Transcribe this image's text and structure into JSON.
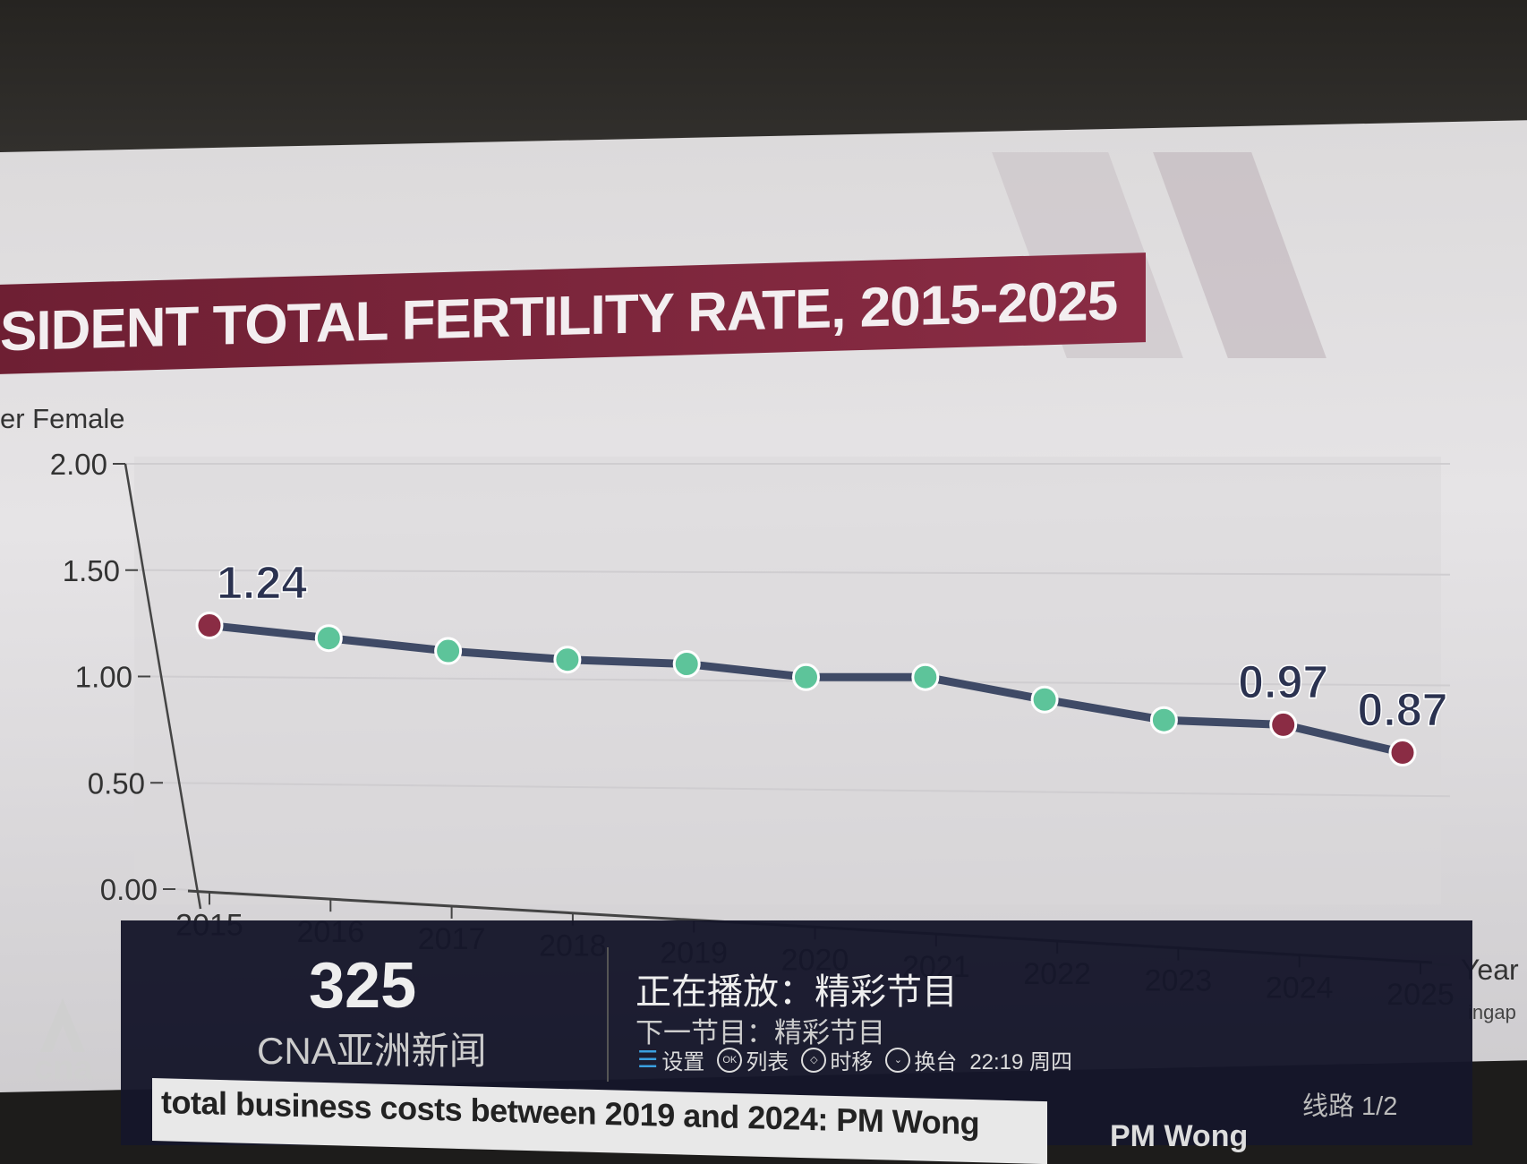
{
  "banner": {
    "title": "SIDENT TOTAL FERTILITY RATE, 2015-2025"
  },
  "chart_data": {
    "type": "line",
    "title": "SIDENT TOTAL FERTILITY RATE, 2015-2025",
    "ylabel": "er Female",
    "xlabel": "Year",
    "x": [
      2015,
      2016,
      2017,
      2018,
      2019,
      2020,
      2021,
      2022,
      2023,
      2024,
      2025
    ],
    "values": [
      1.24,
      1.2,
      1.16,
      1.14,
      1.14,
      1.1,
      1.12,
      1.04,
      0.97,
      0.97,
      0.87
    ],
    "ylim": [
      0,
      2.0
    ],
    "yticks": [
      "0.00",
      "0.50",
      "1.00",
      "1.50",
      "2.00"
    ],
    "xticks": [
      "2015",
      "2016",
      "2017",
      "2018",
      "2019",
      "2020",
      "2021",
      "2022",
      "2023",
      "2024",
      "2025"
    ],
    "data_labels": [
      {
        "x": 2015,
        "text": "1.24"
      },
      {
        "x": 2024,
        "text": "0.97"
      },
      {
        "x": 2025,
        "text": "0.87"
      }
    ],
    "highlighted": [
      2015,
      2024,
      2025
    ],
    "colors": {
      "line": "#3f4a66",
      "point": "#5dc49a",
      "highlight": "#8a2c44"
    },
    "grid": true
  },
  "overlay": {
    "channel_number": "325",
    "channel_name": "CNA亚洲新闻",
    "now_playing": "正在播放：精彩节目",
    "next_program": "下一节目：精彩节目",
    "controls": [
      {
        "icon": "menu-icon",
        "label": "设置"
      },
      {
        "icon": "ok-icon",
        "label": "列表"
      },
      {
        "icon": "timeshift-icon",
        "label": "时移"
      },
      {
        "icon": "chevron-down-icon",
        "label": "换台"
      }
    ],
    "clock": "22:19 周四",
    "route": "线路 1/2"
  },
  "ticker": {
    "text": "total business costs between 2019 and 2024: PM Wong",
    "next": "PM Wong"
  },
  "source_fragment": "ingap",
  "logo": "cna"
}
